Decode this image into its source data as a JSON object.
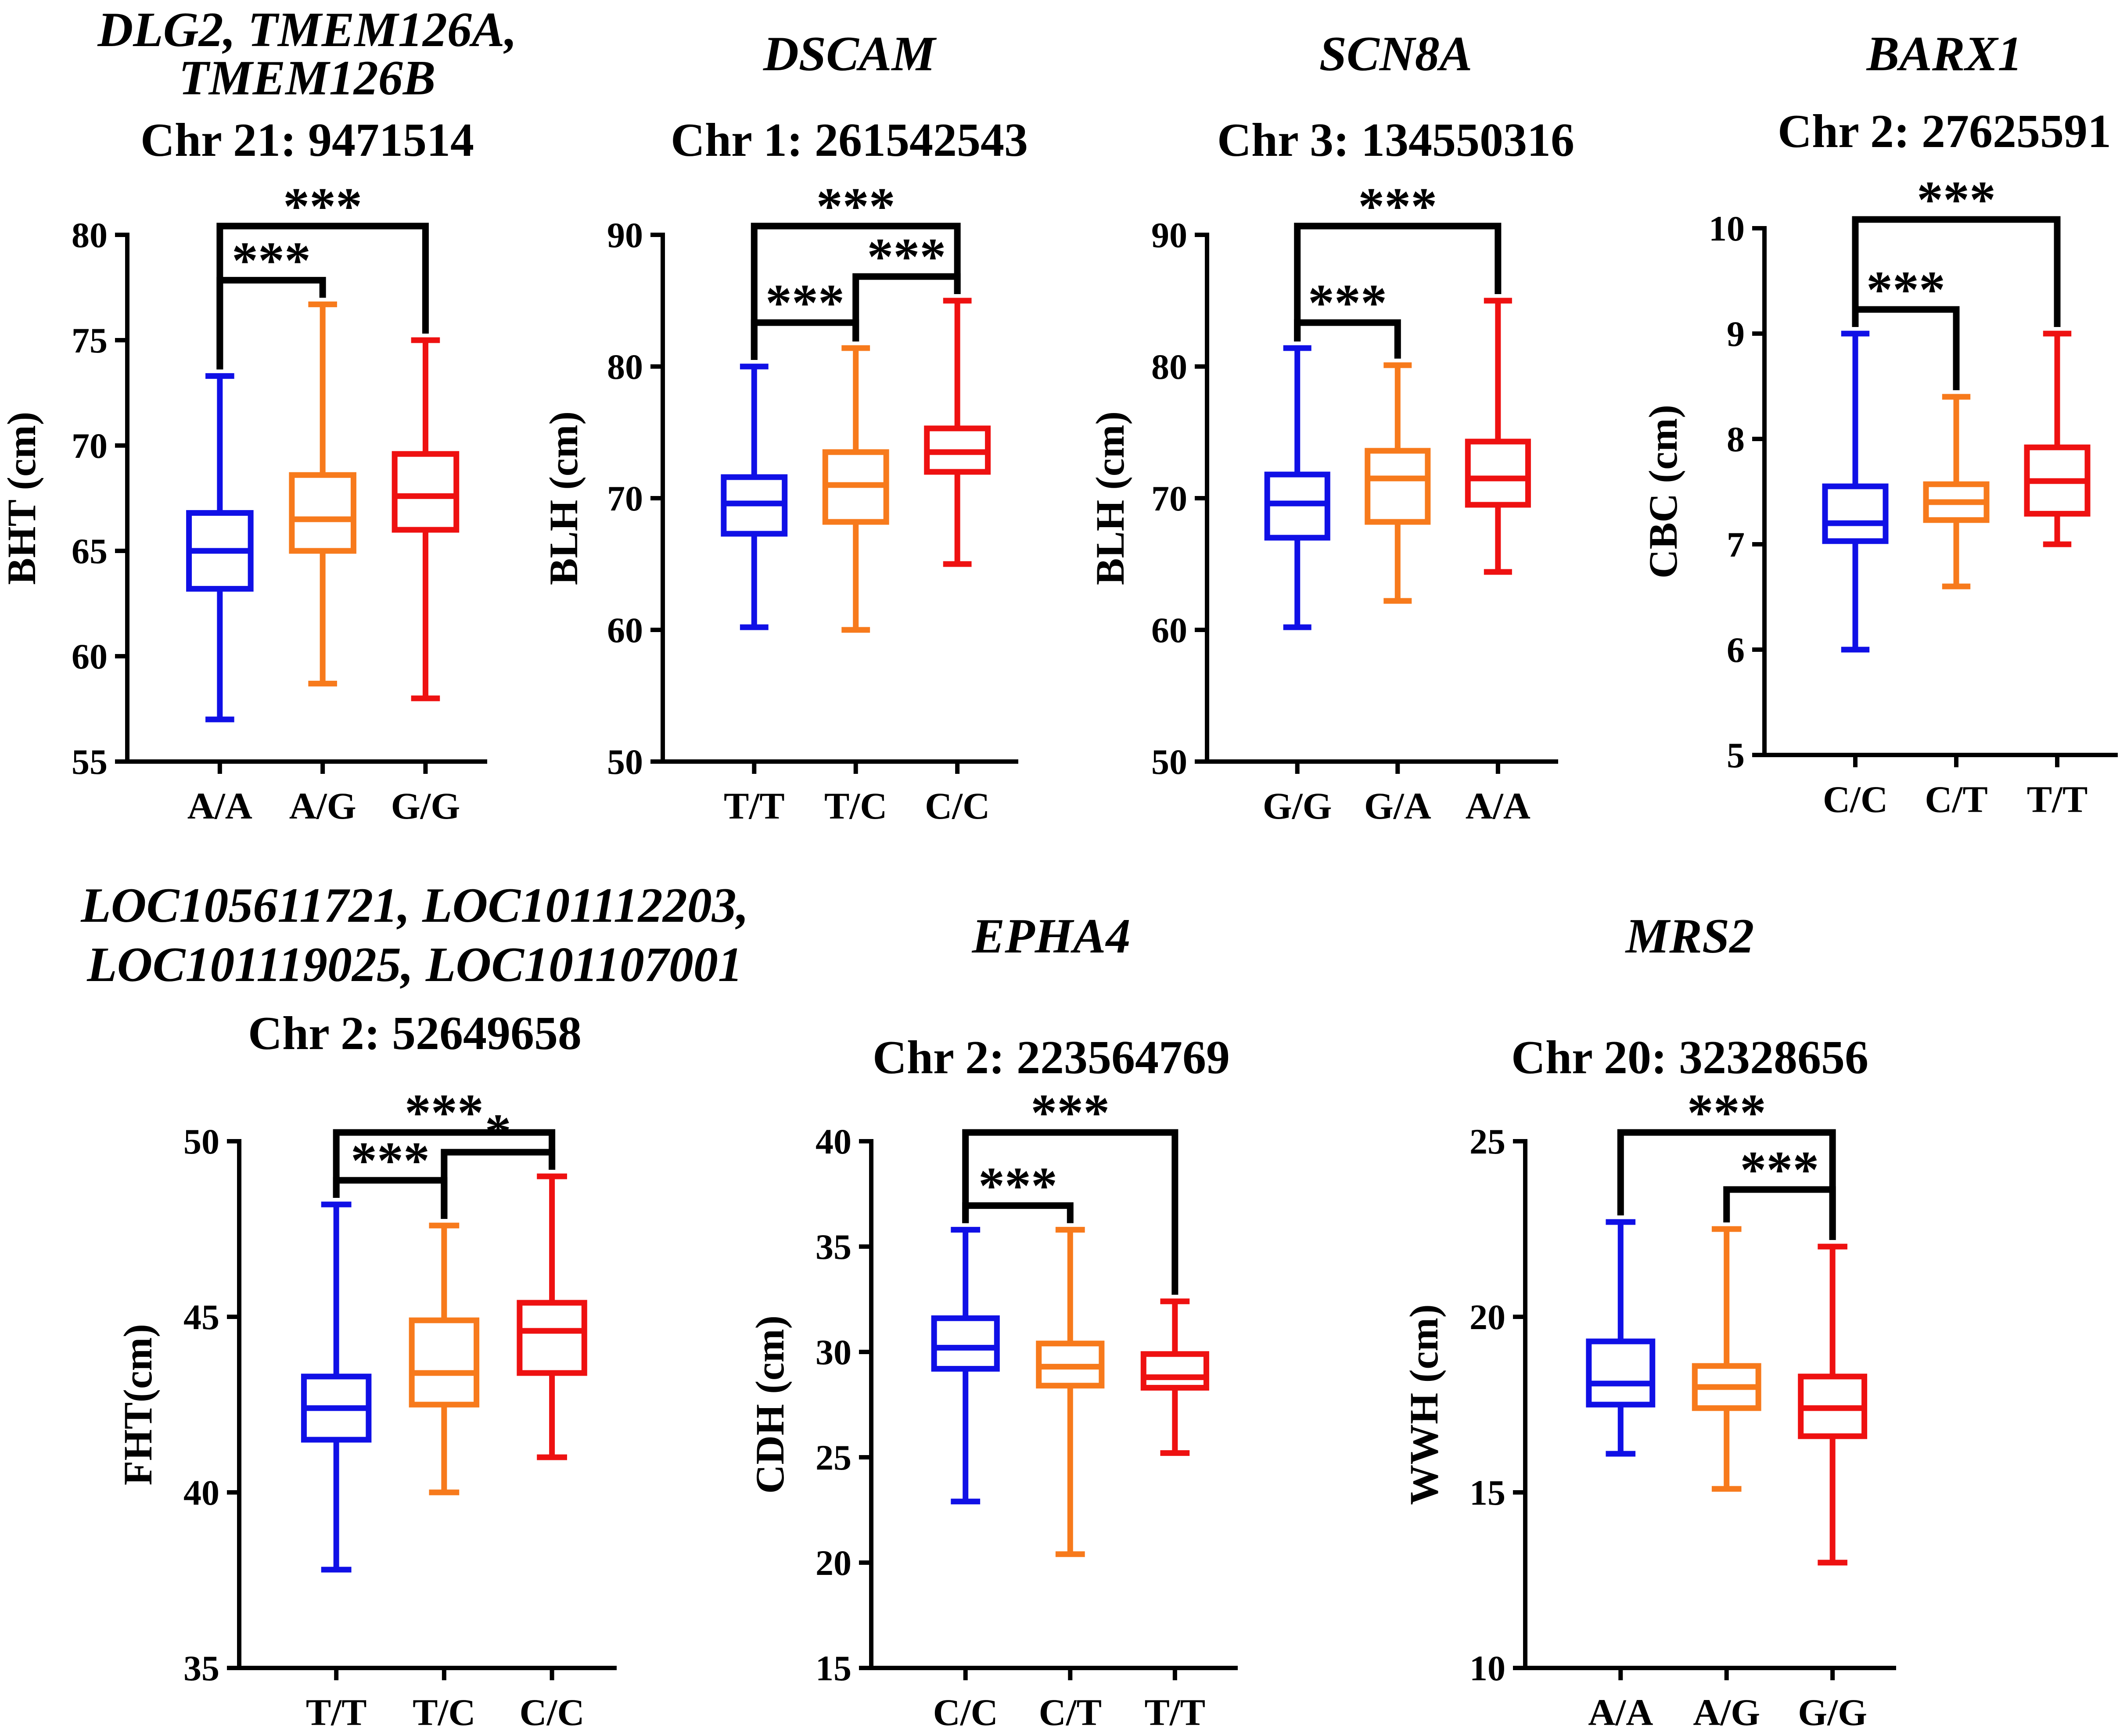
{
  "chart_data": [
    {
      "type": "box",
      "title_lines": [
        "DLG2, TMEM126A,",
        "TMEM126B"
      ],
      "subtitle": "Chr 21: 9471514",
      "ylabel": "BHT (cm)",
      "ylim": [
        55,
        80
      ],
      "yticks": [
        55,
        60,
        65,
        70,
        75,
        80
      ],
      "categories": [
        "A/A",
        "A/G",
        "G/G"
      ],
      "colors": [
        "#1010e6",
        "#f77a1c",
        "#ee1111"
      ],
      "boxes": [
        {
          "min": 57.0,
          "q1": 63.2,
          "median": 65.0,
          "q3": 66.8,
          "max": 73.3
        },
        {
          "min": 58.7,
          "q1": 65.0,
          "median": 66.5,
          "q3": 68.6,
          "max": 76.7
        },
        {
          "min": 58.0,
          "q1": 66.0,
          "median": 67.6,
          "q3": 69.6,
          "max": 75.0
        }
      ],
      "significance": [
        {
          "from": 0,
          "to": 1,
          "label": "***"
        },
        {
          "from": 0,
          "to": 2,
          "label": "***"
        }
      ]
    },
    {
      "type": "box",
      "title_lines": [
        "DSCAM"
      ],
      "subtitle": "Chr 1: 261542543",
      "ylabel": "BLH (cm)",
      "ylim": [
        50,
        90
      ],
      "yticks": [
        50,
        60,
        70,
        80,
        90
      ],
      "categories": [
        "T/T",
        "T/C",
        "C/C"
      ],
      "colors": [
        "#1010e6",
        "#f77a1c",
        "#ee1111"
      ],
      "boxes": [
        {
          "min": 60.2,
          "q1": 67.3,
          "median": 69.6,
          "q3": 71.6,
          "max": 80.0
        },
        {
          "min": 60.0,
          "q1": 68.2,
          "median": 71.0,
          "q3": 73.5,
          "max": 81.4
        },
        {
          "min": 65.0,
          "q1": 72.0,
          "median": 73.5,
          "q3": 75.3,
          "max": 85.0
        }
      ],
      "significance": [
        {
          "from": 0,
          "to": 1,
          "label": "***"
        },
        {
          "from": 1,
          "to": 2,
          "label": "***"
        },
        {
          "from": 0,
          "to": 2,
          "label": "***"
        }
      ]
    },
    {
      "type": "box",
      "title_lines": [
        "SCN8A"
      ],
      "subtitle": "Chr 3: 134550316",
      "ylabel": "BLH (cm)",
      "ylim": [
        50,
        90
      ],
      "yticks": [
        50,
        60,
        70,
        80,
        90
      ],
      "categories": [
        "G/G",
        "G/A",
        "A/A"
      ],
      "colors": [
        "#1010e6",
        "#f77a1c",
        "#ee1111"
      ],
      "boxes": [
        {
          "min": 60.2,
          "q1": 67.0,
          "median": 69.6,
          "q3": 71.8,
          "max": 81.4
        },
        {
          "min": 62.2,
          "q1": 68.2,
          "median": 71.5,
          "q3": 73.6,
          "max": 80.1
        },
        {
          "min": 64.4,
          "q1": 69.5,
          "median": 71.5,
          "q3": 74.3,
          "max": 85.0
        }
      ],
      "significance": [
        {
          "from": 0,
          "to": 1,
          "label": "***"
        },
        {
          "from": 0,
          "to": 2,
          "label": "***"
        }
      ]
    },
    {
      "type": "box",
      "title_lines": [
        "BARX1"
      ],
      "subtitle": "Chr 2: 27625591",
      "ylabel": "CBC (cm)",
      "ylim": [
        5,
        10
      ],
      "yticks": [
        5,
        6,
        7,
        8,
        9,
        10
      ],
      "categories": [
        "C/C",
        "C/T",
        "T/T"
      ],
      "colors": [
        "#1010e6",
        "#f77a1c",
        "#ee1111"
      ],
      "boxes": [
        {
          "min": 6.0,
          "q1": 7.03,
          "median": 7.2,
          "q3": 7.55,
          "max": 9.0
        },
        {
          "min": 6.6,
          "q1": 7.23,
          "median": 7.4,
          "q3": 7.57,
          "max": 8.4
        },
        {
          "min": 7.0,
          "q1": 7.29,
          "median": 7.6,
          "q3": 7.92,
          "max": 9.0
        }
      ],
      "significance": [
        {
          "from": 0,
          "to": 1,
          "label": "***"
        },
        {
          "from": 0,
          "to": 2,
          "label": "***"
        }
      ]
    },
    {
      "type": "box",
      "title_lines": [
        "LOC105611721, LOC101112203,",
        "LOC101119025, LOC101107001"
      ],
      "subtitle": "Chr 2: 52649658",
      "ylabel": "FHT(cm)",
      "ylim": [
        35,
        50
      ],
      "yticks": [
        35,
        40,
        45,
        50
      ],
      "categories": [
        "T/T",
        "T/C",
        "C/C"
      ],
      "colors": [
        "#1010e6",
        "#f77a1c",
        "#ee1111"
      ],
      "boxes": [
        {
          "min": 37.8,
          "q1": 41.5,
          "median": 42.4,
          "q3": 43.3,
          "max": 48.2
        },
        {
          "min": 40.0,
          "q1": 42.5,
          "median": 43.4,
          "q3": 44.9,
          "max": 47.6
        },
        {
          "min": 41.0,
          "q1": 43.4,
          "median": 44.6,
          "q3": 45.4,
          "max": 49.0
        }
      ],
      "significance": [
        {
          "from": 0,
          "to": 1,
          "label": "***"
        },
        {
          "from": 1,
          "to": 2,
          "label": "*"
        },
        {
          "from": 0,
          "to": 2,
          "label": "***"
        }
      ]
    },
    {
      "type": "box",
      "title_lines": [
        "EPHA4"
      ],
      "subtitle": "Chr 2: 223564769",
      "ylabel": "CDH (cm)",
      "ylim": [
        15,
        40
      ],
      "yticks": [
        15,
        20,
        25,
        30,
        35,
        40
      ],
      "categories": [
        "C/C",
        "C/T",
        "T/T"
      ],
      "colors": [
        "#1010e6",
        "#f77a1c",
        "#ee1111"
      ],
      "boxes": [
        {
          "min": 22.9,
          "q1": 29.2,
          "median": 30.2,
          "q3": 31.6,
          "max": 35.8
        },
        {
          "min": 20.4,
          "q1": 28.4,
          "median": 29.3,
          "q3": 30.4,
          "max": 35.8
        },
        {
          "min": 25.2,
          "q1": 28.3,
          "median": 28.8,
          "q3": 29.9,
          "max": 32.4
        }
      ],
      "significance": [
        {
          "from": 0,
          "to": 1,
          "label": "***"
        },
        {
          "from": 0,
          "to": 2,
          "label": "***"
        }
      ]
    },
    {
      "type": "box",
      "title_lines": [
        "MRS2"
      ],
      "subtitle": "Chr 20: 32328656",
      "ylabel": "WWH (cm)",
      "ylim": [
        10,
        25
      ],
      "yticks": [
        10,
        15,
        20,
        25
      ],
      "categories": [
        "A/A",
        "A/G",
        "G/G"
      ],
      "colors": [
        "#1010e6",
        "#f77a1c",
        "#ee1111"
      ],
      "boxes": [
        {
          "min": 16.1,
          "q1": 17.5,
          "median": 18.1,
          "q3": 19.3,
          "max": 22.7
        },
        {
          "min": 15.1,
          "q1": 17.4,
          "median": 18.0,
          "q3": 18.6,
          "max": 22.5
        },
        {
          "min": 13.0,
          "q1": 16.6,
          "median": 17.4,
          "q3": 18.3,
          "max": 22.0
        }
      ],
      "significance": [
        {
          "from": 1,
          "to": 2,
          "label": "***"
        },
        {
          "from": 0,
          "to": 2,
          "label": "***"
        }
      ]
    }
  ]
}
